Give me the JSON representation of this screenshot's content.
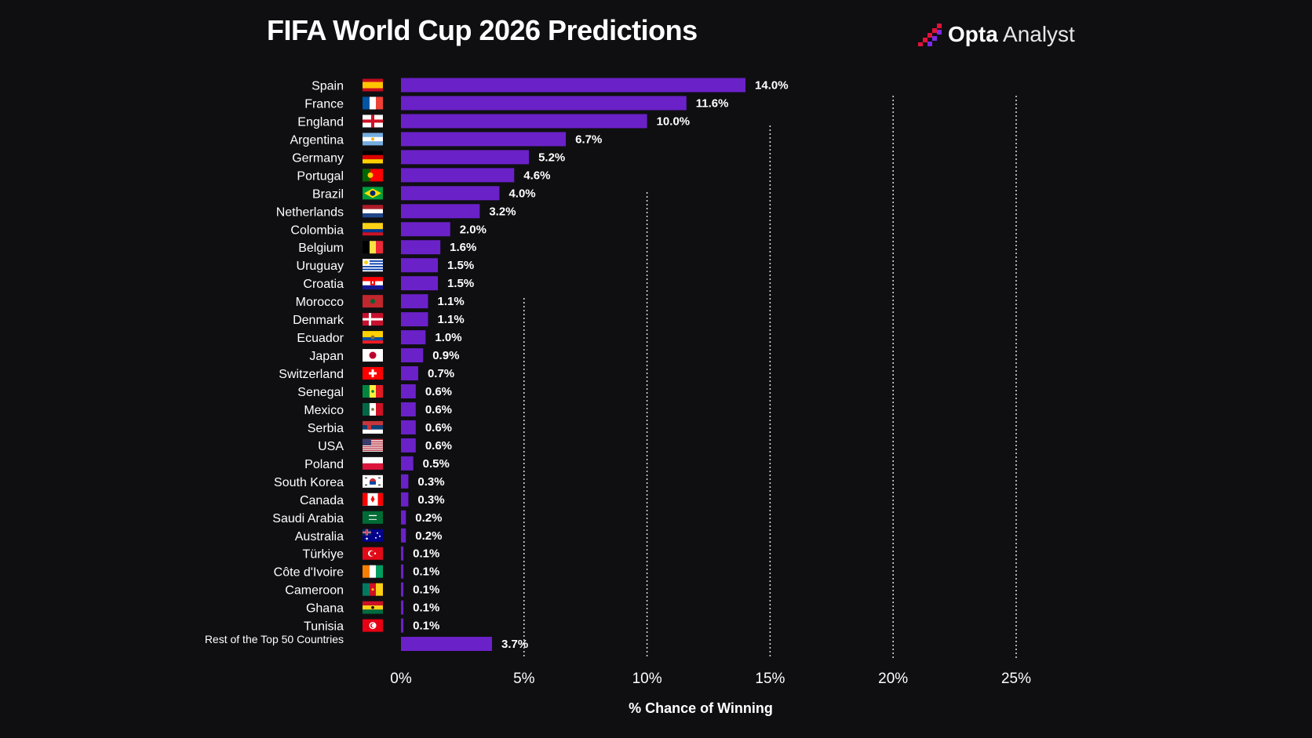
{
  "header": {
    "title": "FIFA World Cup 2026 Predictions",
    "brand_bold": "Opta",
    "brand_light": "Analyst"
  },
  "colors": {
    "background": "#0f0f12",
    "bar": "#6b21c8",
    "grid": "#e0e0e0",
    "text": "#ffffff",
    "brand_red": "#e3123b",
    "brand_purple": "#7c2ae8"
  },
  "chart_data": {
    "type": "bar",
    "orientation": "horizontal",
    "title": "FIFA World Cup 2026 Predictions",
    "xlabel": "% Chance of Winning",
    "ylabel": "",
    "xlim": [
      0,
      25
    ],
    "xticks": [
      0,
      5,
      10,
      15,
      20,
      25
    ],
    "xtick_labels": [
      "0%",
      "5%",
      "10%",
      "15%",
      "20%",
      "25%"
    ],
    "grid": "vertical dotted",
    "categories": [
      "Spain",
      "France",
      "England",
      "Argentina",
      "Germany",
      "Portugal",
      "Brazil",
      "Netherlands",
      "Colombia",
      "Belgium",
      "Uruguay",
      "Croatia",
      "Morocco",
      "Denmark",
      "Ecuador",
      "Japan",
      "Switzerland",
      "Senegal",
      "Mexico",
      "Serbia",
      "USA",
      "Poland",
      "South Korea",
      "Canada",
      "Saudi Arabia",
      "Australia",
      "Türkiye",
      "Côte d'Ivoire",
      "Cameroon",
      "Ghana",
      "Tunisia",
      "Rest of the Top 50 Countries"
    ],
    "values": [
      14.0,
      11.6,
      10.0,
      6.7,
      5.2,
      4.6,
      4.0,
      3.2,
      2.0,
      1.6,
      1.5,
      1.5,
      1.1,
      1.1,
      1.0,
      0.9,
      0.7,
      0.6,
      0.6,
      0.6,
      0.6,
      0.5,
      0.3,
      0.3,
      0.2,
      0.2,
      0.1,
      0.1,
      0.1,
      0.1,
      0.1,
      3.7
    ],
    "value_labels": [
      "14.0%",
      "11.6%",
      "10.0%",
      "6.7%",
      "5.2%",
      "4.6%",
      "4.0%",
      "3.2%",
      "2.0%",
      "1.6%",
      "1.5%",
      "1.5%",
      "1.1%",
      "1.1%",
      "1.0%",
      "0.9%",
      "0.7%",
      "0.6%",
      "0.6%",
      "0.6%",
      "0.6%",
      "0.5%",
      "0.3%",
      "0.3%",
      "0.2%",
      "0.2%",
      "0.1%",
      "0.1%",
      "0.1%",
      "0.1%",
      "0.1%",
      "3.7%"
    ],
    "flags": [
      "es",
      "fr",
      "en",
      "ar",
      "de",
      "pt",
      "br",
      "nl",
      "co",
      "be",
      "uy",
      "hr",
      "ma",
      "dk",
      "ec",
      "jp",
      "ch",
      "sn",
      "mx",
      "rs",
      "us",
      "pl",
      "kr",
      "ca",
      "sa",
      "au",
      "tr",
      "ci",
      "cm",
      "gh",
      "tn",
      ""
    ]
  }
}
